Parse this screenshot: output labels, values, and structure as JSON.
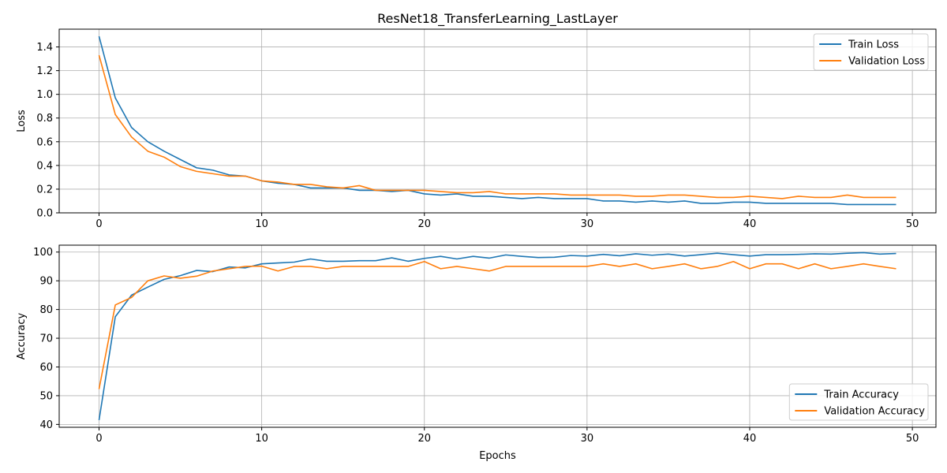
{
  "chart_data": [
    {
      "type": "line",
      "title": "ResNet18_TransferLearning_LastLayer",
      "xlabel": "",
      "ylabel": "Loss",
      "xlim": [
        -2.45,
        51.45
      ],
      "ylim": [
        0,
        1.55
      ],
      "xticks": [
        0,
        10,
        20,
        30,
        40,
        50
      ],
      "yticks": [
        0.0,
        0.2,
        0.4,
        0.6,
        0.8,
        1.0,
        1.2,
        1.4
      ],
      "ytick_decimals": 1,
      "grid": true,
      "legend_position": "top-right",
      "x": [
        0,
        1,
        2,
        3,
        4,
        5,
        6,
        7,
        8,
        9,
        10,
        11,
        12,
        13,
        14,
        15,
        16,
        17,
        18,
        19,
        20,
        21,
        22,
        23,
        24,
        25,
        26,
        27,
        28,
        29,
        30,
        31,
        32,
        33,
        34,
        35,
        36,
        37,
        38,
        39,
        40,
        41,
        42,
        43,
        44,
        45,
        46,
        47,
        48,
        49
      ],
      "series": [
        {
          "name": "Train Loss",
          "color": "#1f77b4",
          "values": [
            1.49,
            0.97,
            0.72,
            0.6,
            0.52,
            0.45,
            0.38,
            0.36,
            0.32,
            0.31,
            0.27,
            0.25,
            0.24,
            0.21,
            0.21,
            0.21,
            0.19,
            0.19,
            0.18,
            0.19,
            0.16,
            0.15,
            0.16,
            0.14,
            0.14,
            0.13,
            0.12,
            0.13,
            0.12,
            0.12,
            0.12,
            0.1,
            0.1,
            0.09,
            0.1,
            0.09,
            0.1,
            0.08,
            0.08,
            0.09,
            0.09,
            0.08,
            0.08,
            0.08,
            0.08,
            0.08,
            0.07,
            0.07,
            0.07,
            0.07
          ]
        },
        {
          "name": "Validation Loss",
          "color": "#ff7f0e",
          "values": [
            1.33,
            0.83,
            0.64,
            0.52,
            0.47,
            0.39,
            0.35,
            0.33,
            0.31,
            0.31,
            0.27,
            0.26,
            0.24,
            0.24,
            0.22,
            0.21,
            0.23,
            0.19,
            0.19,
            0.19,
            0.19,
            0.18,
            0.17,
            0.17,
            0.18,
            0.16,
            0.16,
            0.16,
            0.16,
            0.15,
            0.15,
            0.15,
            0.15,
            0.14,
            0.14,
            0.15,
            0.15,
            0.14,
            0.13,
            0.13,
            0.14,
            0.13,
            0.12,
            0.14,
            0.13,
            0.13,
            0.15,
            0.13,
            0.13,
            0.13
          ]
        }
      ]
    },
    {
      "type": "line",
      "title": "",
      "xlabel": "Epochs",
      "ylabel": "Accuracy",
      "xlim": [
        -2.45,
        51.45
      ],
      "ylim": [
        39,
        102.4
      ],
      "xticks": [
        0,
        10,
        20,
        30,
        40,
        50
      ],
      "yticks": [
        40,
        50,
        60,
        70,
        80,
        90,
        100
      ],
      "ytick_decimals": 0,
      "grid": true,
      "legend_position": "bottom-right",
      "x": [
        0,
        1,
        2,
        3,
        4,
        5,
        6,
        7,
        8,
        9,
        10,
        11,
        12,
        13,
        14,
        15,
        16,
        17,
        18,
        19,
        20,
        21,
        22,
        23,
        24,
        25,
        26,
        27,
        28,
        29,
        30,
        31,
        32,
        33,
        34,
        35,
        36,
        37,
        38,
        39,
        40,
        41,
        42,
        43,
        44,
        45,
        46,
        47,
        48,
        49
      ],
      "series": [
        {
          "name": "Train Accuracy",
          "color": "#1f77b4",
          "values": [
            41.5,
            77.5,
            85.0,
            87.8,
            90.5,
            91.8,
            93.6,
            93.2,
            94.8,
            94.5,
            95.9,
            96.2,
            96.5,
            97.6,
            96.8,
            96.8,
            97.0,
            97.0,
            98.0,
            96.8,
            97.8,
            98.5,
            97.6,
            98.5,
            97.9,
            99.0,
            98.5,
            98.1,
            98.2,
            98.8,
            98.6,
            99.2,
            98.7,
            99.4,
            98.9,
            99.3,
            98.6,
            99.1,
            99.6,
            99.1,
            98.6,
            99.1,
            99.1,
            99.2,
            99.4,
            99.3,
            99.6,
            99.8,
            99.3,
            99.5
          ]
        },
        {
          "name": "Validation Accuracy",
          "color": "#ff7f0e",
          "values": [
            52.3,
            81.6,
            84.2,
            90.0,
            91.7,
            90.9,
            91.6,
            93.4,
            94.2,
            95.0,
            95.1,
            93.4,
            95.0,
            95.0,
            94.2,
            95.0,
            95.0,
            95.0,
            95.0,
            95.0,
            96.7,
            94.2,
            95.0,
            94.2,
            93.4,
            95.0,
            95.0,
            95.0,
            95.0,
            95.0,
            95.0,
            95.9,
            95.0,
            95.9,
            94.2,
            95.0,
            95.9,
            94.2,
            95.0,
            96.7,
            94.2,
            95.9,
            95.9,
            94.2,
            95.9,
            94.2,
            95.0,
            95.9,
            95.0,
            94.2
          ]
        }
      ]
    }
  ]
}
